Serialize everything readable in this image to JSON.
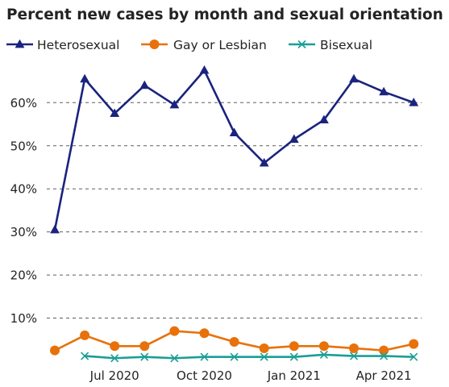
{
  "chart_data": {
    "type": "line",
    "title": "Percent new cases by month and sexual orientation",
    "xlabel": "",
    "ylabel": "",
    "x": [
      "2020-05",
      "2020-06",
      "2020-07",
      "2020-08",
      "2020-09",
      "2020-10",
      "2020-11",
      "2020-12",
      "2021-01",
      "2021-02",
      "2021-03",
      "2021-04",
      "2021-05"
    ],
    "x_tick_labels": [
      {
        "x": "2020-07",
        "label": "Jul 2020"
      },
      {
        "x": "2020-10",
        "label": "Oct 2020"
      },
      {
        "x": "2021-01",
        "label": "Jan 2021"
      },
      {
        "x": "2021-04",
        "label": "Apr 2021"
      }
    ],
    "y_ticks": [
      10,
      20,
      30,
      40,
      50,
      60
    ],
    "y_tick_labels": [
      "10%",
      "20%",
      "30%",
      "40%",
      "50%",
      "60%"
    ],
    "ylim": [
      0,
      68
    ],
    "grid": true,
    "legend_position": "top-left",
    "series": [
      {
        "name": "Heterosexual",
        "color": "#1a237e",
        "marker": "triangle",
        "values": [
          30.5,
          65.5,
          57.5,
          64,
          59.5,
          67.5,
          53,
          46,
          51.5,
          56,
          65.5,
          62.5,
          60
        ]
      },
      {
        "name": "Gay or Lesbian",
        "color": "#e8710a",
        "marker": "circle",
        "values": [
          2.5,
          6,
          3.5,
          3.5,
          7,
          6.5,
          4.5,
          3,
          3.5,
          3.5,
          3,
          2.5,
          4
        ]
      },
      {
        "name": "Bisexual",
        "color": "#1a9e96",
        "marker": "x",
        "values": [
          null,
          1.2,
          0.7,
          1.0,
          0.7,
          1.0,
          1.0,
          1.0,
          1.0,
          1.5,
          1.2,
          1.2,
          1.0
        ]
      }
    ]
  }
}
